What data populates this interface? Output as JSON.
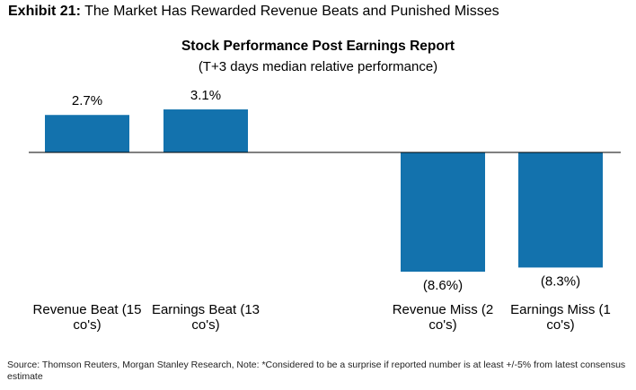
{
  "exhibit": {
    "number": "Exhibit 21:",
    "title": "The Market Has Rewarded Revenue Beats and Punished Misses"
  },
  "chart_data": {
    "type": "bar",
    "title": "Stock Performance Post Earnings Report",
    "subtitle": "(T+3 days median relative performance)",
    "categories": [
      [
        "Revenue Beat (15",
        "co's)"
      ],
      [
        "Earnings Beat (13",
        "co's)"
      ],
      [
        "Revenue Miss (2",
        "co's)"
      ],
      [
        "Earnings Miss (1",
        "co's)"
      ]
    ],
    "values": [
      2.7,
      3.1,
      -8.6,
      -8.3
    ],
    "data_labels": [
      "2.7%",
      "3.1%",
      "(8.6%)",
      "(8.3%)"
    ],
    "unit": "%",
    "bar_color": "#1372ad",
    "grid": false
  },
  "source": "Source: Thomson Reuters, Morgan Stanley Research, Note: *Considered to be a surprise if reported number is at least +/-5% from latest consensus estimate"
}
